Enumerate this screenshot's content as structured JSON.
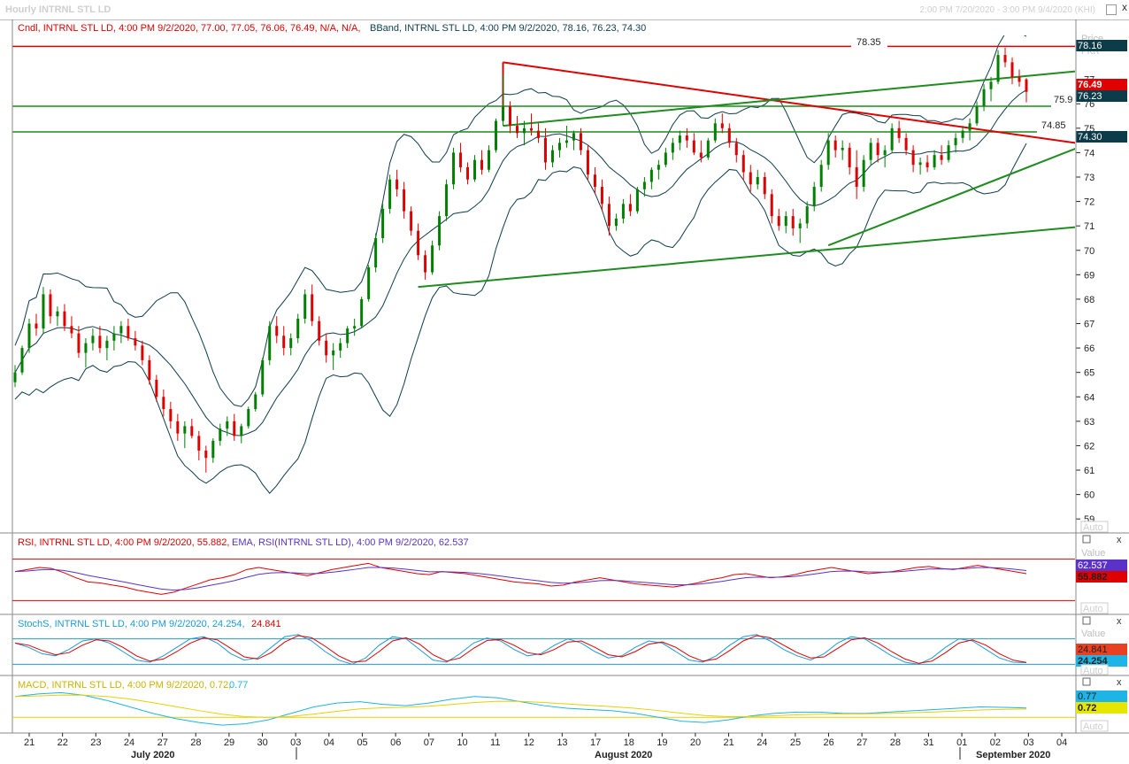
{
  "window": {
    "title": "Hourly INTRNL STL LD",
    "range": "2:00 PM 7/20/2020 - 3:00 PM 9/4/2020 (KHI)",
    "close_glyph": "x"
  },
  "header": {
    "price_legend": "Cndl, INTRNL STL LD, 4:00 PM 9/2/2020, 77.00, 77.05, 76.06, 76.49, N/A, N/A,",
    "bband_legend": "BBand, INTRNL STL LD, 4:00 PM 9/2/2020, 78.16, 76.23, 74.30",
    "rsi_legend": "RSI, INTRNL STL LD, 4:00 PM 9/2/2020, 55.882,",
    "rsi_ema_legend": "EMA, RSI(INTRNL STL LD), 4:00 PM 9/2/2020, 62.537",
    "stoch_legend": "StochS, INTRNL STL LD, 4:00 PM 9/2/2020, 24.254,",
    "stoch_legend_2": "24.841",
    "macd_legend": "MACD, INTRNL STL LD, 4:00 PM 9/2/2020, 0.72,",
    "macd_legend_2": "0.77"
  },
  "axis": {
    "price_header": "Price",
    "price_header_2": "PKR",
    "value_header": "Value",
    "auto": "Auto",
    "price_ticks": [
      "77",
      "76",
      "75",
      "74",
      "73",
      "72",
      "71",
      "70",
      "69",
      "68",
      "67",
      "66",
      "65",
      "64",
      "63",
      "62",
      "61",
      "60",
      "59"
    ],
    "date_ticks": [
      "21",
      "22",
      "23",
      "24",
      "27",
      "28",
      "29",
      "30",
      "03",
      "04",
      "05",
      "06",
      "07",
      "10",
      "11",
      "12",
      "13",
      "17",
      "18",
      "19",
      "20",
      "21",
      "24",
      "25",
      "26",
      "27",
      "28",
      "31",
      "01",
      "02",
      "03",
      "04"
    ],
    "months": [
      "July 2020",
      "August 2020",
      "September 2020"
    ]
  },
  "badges": {
    "bb_upper": "78.16",
    "close": "76.49",
    "bb_mid": "76.23",
    "bb_lower": "74.30",
    "rsi_ema": "62.537",
    "rsi": "55.882",
    "stoch_a": "24.841",
    "stoch_b": "24.254",
    "macd_a": "0.77",
    "macd_b": "0.72"
  },
  "annotations": {
    "resistance_top": "78.35",
    "level_mid": "75.9",
    "level_low": "74.85"
  },
  "colors": {
    "up": "#008000",
    "down": "#e00000",
    "bband": "#0c3c4a",
    "trend_green": "#1e8c1e",
    "trend_red": "#e00000",
    "rsi": "#e00000",
    "rsi_ema": "#5a32c8",
    "stoch_k": "#1e9bd7",
    "stoch_d": "#e00000",
    "macd": "#1eb4e6",
    "macd_signal": "#e6d200"
  },
  "chart_data": {
    "type": "candlestick",
    "interval": "Hourly",
    "symbol": "INTRNL STL LD",
    "ylim": [
      58.5,
      78.8
    ],
    "candles": [
      [
        64.6,
        65.3,
        64.4,
        65.0
      ],
      [
        65.0,
        66.1,
        64.9,
        66.0
      ],
      [
        66.0,
        67.2,
        65.8,
        67.0
      ],
      [
        67.0,
        67.4,
        66.5,
        66.8
      ],
      [
        66.8,
        68.5,
        66.6,
        68.2
      ],
      [
        68.2,
        68.4,
        67.0,
        67.3
      ],
      [
        67.3,
        67.7,
        66.9,
        67.5
      ],
      [
        67.5,
        67.8,
        66.7,
        66.9
      ],
      [
        66.9,
        67.3,
        66.4,
        66.6
      ],
      [
        66.6,
        66.9,
        65.6,
        65.8
      ],
      [
        65.8,
        66.4,
        65.2,
        66.2
      ],
      [
        66.2,
        66.8,
        65.9,
        66.5
      ],
      [
        66.5,
        66.9,
        65.8,
        66.0
      ],
      [
        66.0,
        66.5,
        65.5,
        66.3
      ],
      [
        66.3,
        66.9,
        65.9,
        66.6
      ],
      [
        66.6,
        67.1,
        66.2,
        66.9
      ],
      [
        66.9,
        67.2,
        66.3,
        66.4
      ],
      [
        66.4,
        66.7,
        65.9,
        66.1
      ],
      [
        66.1,
        66.3,
        65.3,
        65.5
      ],
      [
        65.5,
        65.7,
        64.5,
        64.7
      ],
      [
        64.7,
        64.9,
        63.8,
        64.0
      ],
      [
        64.0,
        64.3,
        63.2,
        63.5
      ],
      [
        63.5,
        63.8,
        62.7,
        63.0
      ],
      [
        63.0,
        63.3,
        62.2,
        62.5
      ],
      [
        62.5,
        63.0,
        61.9,
        62.8
      ],
      [
        62.8,
        63.1,
        62.3,
        62.4
      ],
      [
        62.4,
        62.6,
        61.4,
        61.8
      ],
      [
        61.8,
        62.0,
        60.9,
        61.5
      ],
      [
        61.5,
        62.3,
        61.3,
        62.2
      ],
      [
        62.2,
        62.9,
        62.0,
        62.7
      ],
      [
        62.7,
        63.2,
        62.4,
        63.0
      ],
      [
        63.0,
        63.3,
        62.2,
        62.4
      ],
      [
        62.4,
        62.9,
        62.1,
        62.8
      ],
      [
        62.8,
        63.6,
        62.7,
        63.5
      ],
      [
        63.5,
        64.2,
        63.4,
        64.1
      ],
      [
        64.1,
        65.6,
        64.0,
        65.5
      ],
      [
        65.5,
        67.1,
        65.3,
        66.9
      ],
      [
        66.9,
        67.3,
        66.2,
        66.5
      ],
      [
        66.5,
        66.9,
        65.7,
        66.0
      ],
      [
        66.0,
        66.6,
        65.7,
        66.4
      ],
      [
        66.4,
        67.4,
        66.2,
        67.2
      ],
      [
        67.2,
        68.4,
        67.0,
        68.2
      ],
      [
        68.2,
        68.6,
        66.9,
        67.1
      ],
      [
        67.1,
        67.3,
        66.1,
        66.3
      ],
      [
        66.3,
        66.6,
        65.4,
        65.7
      ],
      [
        65.7,
        66.2,
        65.1,
        65.9
      ],
      [
        65.9,
        66.4,
        65.6,
        66.2
      ],
      [
        66.2,
        66.9,
        66.0,
        66.8
      ],
      [
        66.8,
        67.2,
        66.5,
        66.9
      ],
      [
        66.9,
        68.1,
        66.8,
        68.0
      ],
      [
        68.0,
        69.4,
        67.9,
        69.3
      ],
      [
        69.3,
        70.7,
        69.1,
        70.5
      ],
      [
        70.5,
        71.9,
        70.3,
        71.7
      ],
      [
        71.7,
        73.1,
        71.5,
        72.9
      ],
      [
        72.9,
        73.3,
        72.2,
        72.5
      ],
      [
        72.5,
        72.8,
        71.3,
        71.6
      ],
      [
        71.6,
        71.8,
        70.6,
        70.8
      ],
      [
        70.8,
        71.1,
        69.6,
        69.8
      ],
      [
        69.8,
        70.0,
        68.8,
        69.1
      ],
      [
        69.1,
        70.4,
        69.0,
        70.2
      ],
      [
        70.2,
        71.6,
        70.0,
        71.4
      ],
      [
        71.4,
        72.9,
        71.2,
        72.7
      ],
      [
        72.7,
        74.2,
        72.5,
        74.0
      ],
      [
        74.0,
        74.4,
        73.2,
        73.4
      ],
      [
        73.4,
        73.6,
        72.7,
        72.9
      ],
      [
        72.9,
        73.9,
        72.8,
        73.7
      ],
      [
        73.7,
        74.1,
        73.1,
        73.3
      ],
      [
        73.3,
        74.3,
        73.2,
        74.1
      ],
      [
        74.1,
        75.4,
        74.0,
        75.3
      ],
      [
        75.3,
        77.2,
        75.1,
        75.9
      ],
      [
        75.9,
        76.1,
        74.8,
        75.1
      ],
      [
        75.1,
        75.5,
        74.6,
        74.8
      ],
      [
        74.8,
        75.3,
        74.3,
        75.0
      ],
      [
        75.0,
        75.6,
        74.7,
        74.9
      ],
      [
        74.9,
        75.2,
        74.4,
        74.6
      ],
      [
        74.6,
        75.0,
        73.3,
        73.6
      ],
      [
        73.6,
        74.3,
        73.4,
        74.1
      ],
      [
        74.1,
        74.6,
        73.8,
        74.4
      ],
      [
        74.4,
        75.1,
        74.2,
        74.5
      ],
      [
        74.5,
        74.9,
        74.1,
        74.8
      ],
      [
        74.8,
        75.0,
        73.9,
        74.1
      ],
      [
        74.1,
        74.3,
        72.9,
        73.1
      ],
      [
        73.1,
        73.4,
        72.3,
        72.6
      ],
      [
        72.6,
        72.9,
        71.6,
        71.9
      ],
      [
        71.9,
        72.2,
        70.6,
        71.0
      ],
      [
        71.0,
        71.5,
        70.8,
        71.3
      ],
      [
        71.3,
        72.1,
        71.1,
        71.9
      ],
      [
        71.9,
        72.3,
        71.4,
        71.6
      ],
      [
        71.6,
        72.6,
        71.5,
        72.5
      ],
      [
        72.5,
        73.0,
        72.2,
        72.8
      ],
      [
        72.8,
        73.4,
        72.5,
        73.3
      ],
      [
        73.3,
        73.7,
        72.9,
        73.5
      ],
      [
        73.5,
        74.2,
        73.4,
        74.0
      ],
      [
        74.0,
        74.6,
        73.7,
        74.4
      ],
      [
        74.4,
        74.9,
        74.1,
        74.7
      ],
      [
        74.7,
        75.0,
        74.2,
        74.5
      ],
      [
        74.5,
        74.8,
        73.9,
        74.0
      ],
      [
        74.0,
        74.5,
        73.6,
        73.8
      ],
      [
        73.8,
        74.6,
        73.7,
        74.5
      ],
      [
        74.5,
        75.4,
        74.4,
        75.2
      ],
      [
        75.2,
        75.6,
        74.8,
        75.0
      ],
      [
        75.0,
        75.2,
        74.2,
        74.4
      ],
      [
        74.4,
        74.6,
        73.6,
        73.9
      ],
      [
        73.9,
        74.1,
        72.9,
        73.2
      ],
      [
        73.2,
        73.5,
        72.4,
        72.7
      ],
      [
        72.7,
        73.3,
        72.5,
        73.0
      ],
      [
        73.0,
        73.2,
        72.1,
        72.3
      ],
      [
        72.3,
        72.5,
        71.1,
        71.4
      ],
      [
        71.4,
        71.7,
        70.8,
        71.0
      ],
      [
        71.0,
        71.6,
        70.7,
        71.4
      ],
      [
        71.4,
        71.7,
        70.6,
        70.9
      ],
      [
        70.9,
        71.3,
        70.3,
        71.1
      ],
      [
        71.1,
        72.0,
        70.9,
        71.8
      ],
      [
        71.8,
        72.8,
        71.6,
        72.6
      ],
      [
        72.6,
        73.7,
        72.4,
        73.5
      ],
      [
        73.5,
        74.8,
        73.3,
        74.5
      ],
      [
        74.5,
        74.7,
        73.8,
        74.1
      ],
      [
        74.1,
        74.5,
        73.7,
        74.2
      ],
      [
        74.2,
        74.4,
        73.1,
        73.4
      ],
      [
        73.4,
        74.1,
        72.1,
        72.6
      ],
      [
        72.6,
        73.9,
        72.4,
        73.7
      ],
      [
        73.7,
        74.6,
        73.5,
        74.4
      ],
      [
        74.4,
        74.6,
        73.6,
        73.9
      ],
      [
        73.9,
        74.3,
        73.4,
        74.1
      ],
      [
        74.1,
        75.2,
        74.0,
        75.0
      ],
      [
        75.0,
        75.3,
        74.4,
        74.6
      ],
      [
        74.6,
        74.8,
        73.9,
        74.1
      ],
      [
        74.1,
        74.3,
        73.2,
        73.5
      ],
      [
        73.5,
        73.8,
        73.1,
        73.6
      ],
      [
        73.6,
        73.9,
        73.2,
        73.4
      ],
      [
        73.4,
        74.1,
        73.3,
        73.9
      ],
      [
        73.9,
        74.3,
        73.5,
        73.7
      ],
      [
        73.7,
        74.5,
        73.6,
        74.3
      ],
      [
        74.3,
        74.8,
        74.0,
        74.6
      ],
      [
        74.6,
        75.1,
        74.4,
        74.9
      ],
      [
        74.9,
        75.4,
        74.5,
        75.2
      ],
      [
        75.2,
        76.1,
        75.1,
        75.9
      ],
      [
        75.9,
        76.8,
        75.7,
        76.6
      ],
      [
        76.6,
        77.1,
        76.1,
        76.9
      ],
      [
        76.9,
        78.2,
        76.8,
        78.0
      ],
      [
        78.0,
        78.3,
        77.5,
        77.7
      ],
      [
        77.7,
        77.9,
        76.8,
        77.1
      ],
      [
        77.1,
        77.4,
        76.7,
        76.9
      ],
      [
        77.0,
        77.05,
        76.06,
        76.49
      ]
    ],
    "bollinger_last": {
      "upper": 78.16,
      "middle": 76.23,
      "lower": 74.3
    },
    "horizontal_levels": [
      78.35,
      75.9,
      74.85
    ],
    "rsi": {
      "overbought": 70,
      "oversold": 30,
      "last": 55.882,
      "ema_last": 62.537,
      "values": [
        58,
        60,
        62,
        61,
        57,
        52,
        48,
        47,
        45,
        43,
        40,
        38,
        36,
        38,
        42,
        46,
        50,
        52,
        55,
        60,
        62,
        60,
        58,
        56,
        54,
        57,
        60,
        62,
        64,
        66,
        62,
        60,
        58,
        56,
        55,
        58,
        57,
        56,
        54,
        52,
        50,
        48,
        47,
        46,
        44,
        45,
        48,
        50,
        52,
        50,
        48,
        46,
        45,
        44,
        43,
        45,
        47,
        50,
        52,
        55,
        56,
        54,
        52,
        53,
        55,
        58,
        60,
        62,
        60,
        58,
        56,
        57,
        58,
        60,
        62,
        63,
        61,
        60,
        62,
        64,
        62,
        60,
        58,
        56
      ]
    },
    "stoch": {
      "upper": 80,
      "lower": 20,
      "k_last": 24.254,
      "d_last": 24.841,
      "values": [
        70,
        60,
        45,
        40,
        55,
        75,
        80,
        70,
        50,
        30,
        25,
        40,
        60,
        80,
        85,
        70,
        45,
        30,
        35,
        60,
        85,
        90,
        75,
        50,
        30,
        20,
        35,
        65,
        85,
        80,
        55,
        30,
        25,
        45,
        70,
        82,
        75,
        55,
        40,
        45,
        65,
        80,
        70,
        50,
        35,
        40,
        60,
        75,
        70,
        50,
        30,
        25,
        40,
        65,
        85,
        90,
        75,
        55,
        40,
        30,
        45,
        70,
        85,
        80,
        60,
        40,
        25,
        20,
        35,
        60,
        80,
        75,
        55,
        35,
        25,
        24
      ]
    },
    "macd": {
      "last": 0.72,
      "signal_last": 0.77,
      "values": [
        1.6,
        1.8,
        1.9,
        1.7,
        1.3,
        0.8,
        0.3,
        -0.1,
        -0.4,
        -0.6,
        -0.5,
        -0.2,
        0.3,
        0.8,
        1.1,
        1.2,
        1.0,
        0.9,
        1.1,
        1.4,
        1.6,
        1.5,
        1.2,
        0.9,
        0.7,
        0.6,
        0.5,
        0.3,
        0.0,
        -0.3,
        -0.4,
        -0.2,
        0.1,
        0.3,
        0.4,
        0.4,
        0.3,
        0.3,
        0.4,
        0.5,
        0.6,
        0.7,
        0.8,
        0.77,
        0.72
      ]
    }
  }
}
